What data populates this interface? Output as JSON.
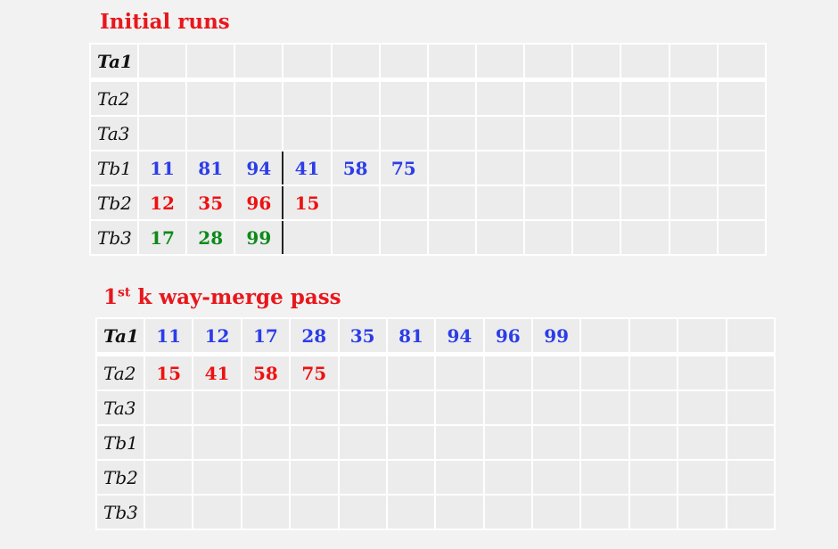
{
  "initial": {
    "title": "Initial runs",
    "columns": 13,
    "tapes": [
      {
        "label": "Ta1",
        "active": true,
        "cells": []
      },
      {
        "label": "Ta2",
        "active": false,
        "cells": []
      },
      {
        "label": "Ta3",
        "active": false,
        "cells": []
      },
      {
        "label": "Tb1",
        "active": false,
        "cells": [
          {
            "v": "11",
            "c": "blue"
          },
          {
            "v": "81",
            "c": "blue"
          },
          {
            "v": "94",
            "c": "blue",
            "sep": true
          },
          {
            "v": "41",
            "c": "blue"
          },
          {
            "v": "58",
            "c": "blue"
          },
          {
            "v": "75",
            "c": "blue"
          }
        ]
      },
      {
        "label": "Tb2",
        "active": false,
        "cells": [
          {
            "v": "12",
            "c": "red"
          },
          {
            "v": "35",
            "c": "red"
          },
          {
            "v": "96",
            "c": "red",
            "sep": true
          },
          {
            "v": "15",
            "c": "red"
          }
        ]
      },
      {
        "label": "Tb3",
        "active": false,
        "cells": [
          {
            "v": "17",
            "c": "green"
          },
          {
            "v": "28",
            "c": "green"
          },
          {
            "v": "99",
            "c": "green",
            "sep": true
          }
        ]
      }
    ]
  },
  "pass1": {
    "title_prefix": "1",
    "title_sup": "st",
    "title_rest": " k way-merge pass",
    "columns": 13,
    "tapes": [
      {
        "label": "Ta1",
        "active": true,
        "cells": [
          {
            "v": "11",
            "c": "blue"
          },
          {
            "v": "12",
            "c": "blue"
          },
          {
            "v": "17",
            "c": "blue"
          },
          {
            "v": "28",
            "c": "blue"
          },
          {
            "v": "35",
            "c": "blue"
          },
          {
            "v": "81",
            "c": "blue"
          },
          {
            "v": "94",
            "c": "blue"
          },
          {
            "v": "96",
            "c": "blue"
          },
          {
            "v": "99",
            "c": "blue"
          }
        ]
      },
      {
        "label": "Ta2",
        "active": false,
        "cells": [
          {
            "v": "15",
            "c": "red"
          },
          {
            "v": "41",
            "c": "red"
          },
          {
            "v": "58",
            "c": "red"
          },
          {
            "v": "75",
            "c": "red"
          }
        ]
      },
      {
        "label": "Ta3",
        "active": false,
        "cells": []
      },
      {
        "label": "Tb1",
        "active": false,
        "cells": []
      },
      {
        "label": "Tb2",
        "active": false,
        "cells": []
      },
      {
        "label": "Tb3",
        "active": false,
        "cells": []
      }
    ]
  }
}
